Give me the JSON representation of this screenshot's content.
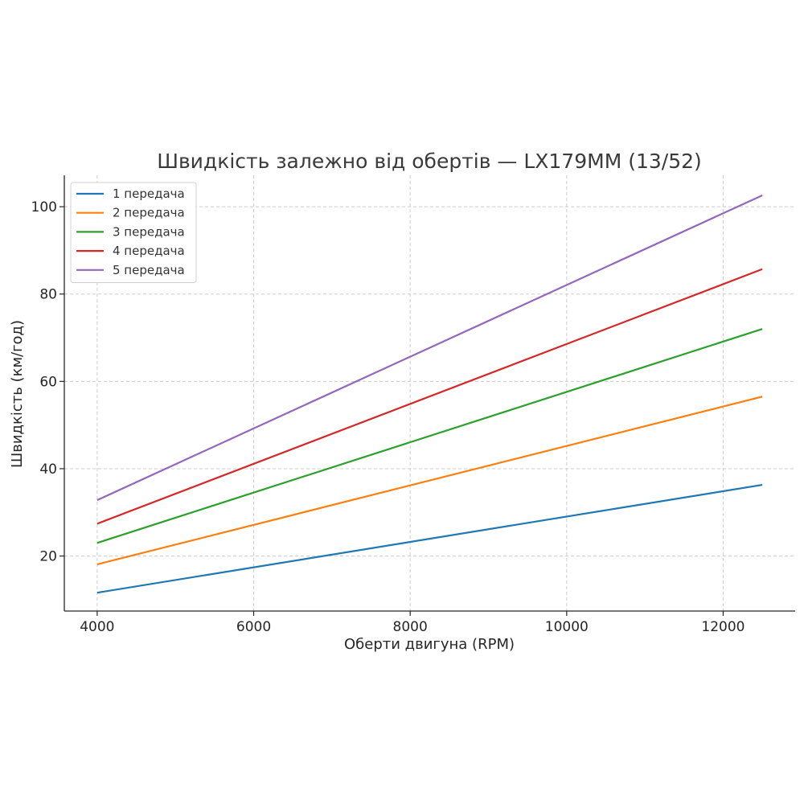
{
  "chart_data": {
    "type": "line",
    "title": "Швидкість залежно від обертів — LX179MM (13/52)",
    "xlabel": "Оберти двигуна (RPM)",
    "ylabel": "Швидкість (км/год)",
    "xlim": [
      3580,
      12920
    ],
    "ylim": [
      7.4,
      107.2
    ],
    "xticks": [
      4000,
      6000,
      8000,
      10000,
      12000
    ],
    "yticks": [
      20,
      40,
      60,
      80,
      100
    ],
    "grid": true,
    "legend_position": "top-left",
    "x": [
      4000,
      12500
    ],
    "series": [
      {
        "name": "1 передача",
        "color": "#1f77b4",
        "values": [
          11.6,
          36.3
        ]
      },
      {
        "name": "2 передача",
        "color": "#ff7f0e",
        "values": [
          18.1,
          56.5
        ]
      },
      {
        "name": "3 передача",
        "color": "#2ca02c",
        "values": [
          23.0,
          72.0
        ]
      },
      {
        "name": "4 передача",
        "color": "#d62728",
        "values": [
          27.4,
          85.7
        ]
      },
      {
        "name": "5 передача",
        "color": "#9467bd",
        "values": [
          32.8,
          102.6
        ]
      }
    ]
  }
}
